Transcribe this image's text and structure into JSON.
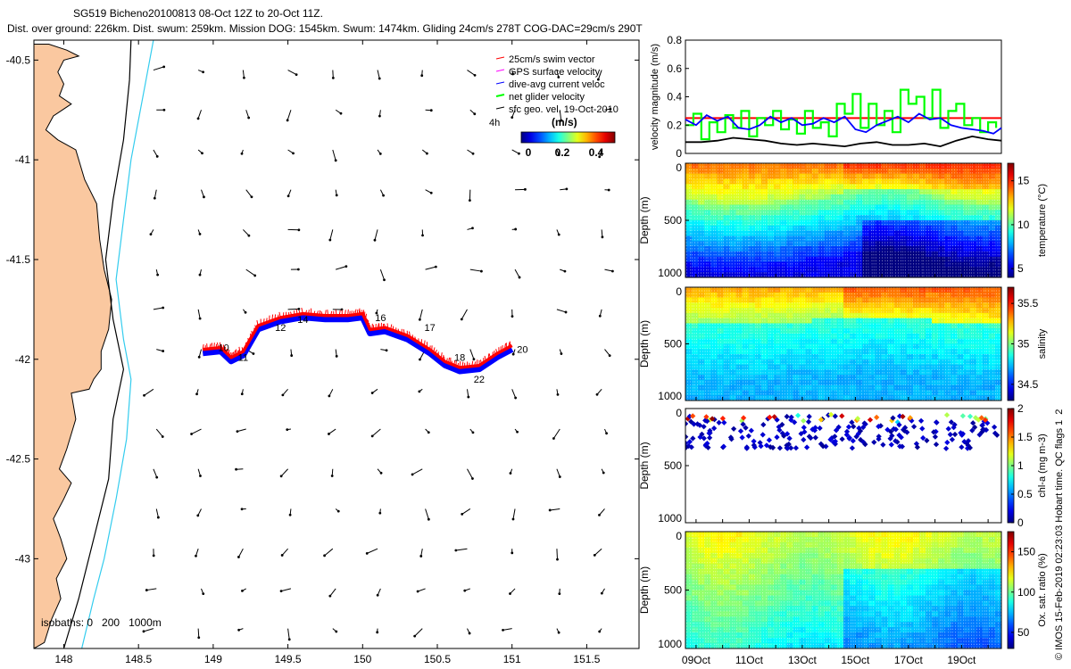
{
  "header": {
    "line1": "SG519 Bicheno20100813 08-Oct 12Z to 20-Oct 11Z.",
    "line2": "Dist. over ground: 226km. Dist. swum: 259km. Mission DOG: 1545km. Swum: 1474km. Gliding 24cm/s 278T COG-DAC=29cm/s 290T"
  },
  "colors": {
    "land": "#fac8a0",
    "isobath_200": "#000000",
    "isobath_1000": "#33ccee",
    "swim_vector": "#ff0000",
    "gps_velocity": "#ff00ff",
    "dive_avg": "#0000ff",
    "net_glider": "#00ff00",
    "sfc_geo": "#000000"
  },
  "chart_data": [
    {
      "id": "map",
      "type": "scatter",
      "title": "",
      "xlim": [
        147.8,
        151.85
      ],
      "ylim": [
        -43.45,
        -40.4
      ],
      "xticks": [
        148,
        148.5,
        149,
        149.5,
        150,
        150.5,
        151,
        151.5
      ],
      "yticks": [
        -40.5,
        -41,
        -41.5,
        -42,
        -42.5,
        -43
      ],
      "xtick_labels": [
        "148",
        "148.5",
        "149",
        "149.5",
        "150",
        "150.5",
        "151",
        "151.5"
      ],
      "ytick_labels": [
        "-40.5",
        "-41",
        "-41.5",
        "-42",
        "-42.5",
        "-43"
      ],
      "legend": [
        "25cm/s swim vector",
        "GPS surface velocity",
        "dive-avg current veloc",
        "net glider velocity",
        "sfc geo. vel. 19-Oct-2010"
      ],
      "legend_note": "4h",
      "colorbar": {
        "label": "(m/s)",
        "ticks": [
          "0",
          "0.2",
          "0.4"
        ],
        "range": [
          -0.05,
          0.5
        ]
      },
      "isobath_label": "isobaths: 0   200   1000m",
      "coast": [
        [
          147.8,
          -40.42
        ],
        [
          147.9,
          -40.42
        ],
        [
          148.02,
          -40.45
        ],
        [
          148.1,
          -40.48
        ],
        [
          148.0,
          -40.5
        ],
        [
          147.96,
          -40.56
        ],
        [
          148.0,
          -40.62
        ],
        [
          147.97,
          -40.68
        ],
        [
          148.05,
          -40.72
        ],
        [
          147.93,
          -40.78
        ],
        [
          147.88,
          -40.85
        ],
        [
          147.96,
          -40.9
        ],
        [
          148.08,
          -40.95
        ],
        [
          148.14,
          -41.1
        ],
        [
          148.22,
          -41.22
        ],
        [
          148.24,
          -41.4
        ],
        [
          148.27,
          -41.55
        ],
        [
          148.32,
          -41.7
        ],
        [
          148.3,
          -41.85
        ],
        [
          148.25,
          -41.96
        ],
        [
          148.25,
          -42.05
        ],
        [
          148.2,
          -42.1
        ],
        [
          148.17,
          -42.15
        ],
        [
          148.05,
          -42.17
        ],
        [
          148.08,
          -42.3
        ],
        [
          148.02,
          -42.45
        ],
        [
          147.97,
          -42.55
        ],
        [
          148.05,
          -42.62
        ],
        [
          148.0,
          -42.7
        ],
        [
          147.93,
          -42.8
        ],
        [
          147.98,
          -42.9
        ],
        [
          148.02,
          -43.0
        ],
        [
          147.95,
          -43.1
        ],
        [
          147.98,
          -43.2
        ],
        [
          147.92,
          -43.3
        ],
        [
          147.87,
          -43.42
        ],
        [
          147.8,
          -43.45
        ]
      ],
      "isobath_200": [
        [
          148.45,
          -40.4
        ],
        [
          148.44,
          -40.6
        ],
        [
          148.4,
          -40.9
        ],
        [
          148.33,
          -41.2
        ],
        [
          148.28,
          -41.5
        ],
        [
          148.33,
          -41.8
        ],
        [
          148.4,
          -42.05
        ],
        [
          148.33,
          -42.3
        ],
        [
          148.3,
          -42.6
        ],
        [
          148.2,
          -42.9
        ],
        [
          148.1,
          -43.2
        ],
        [
          148.0,
          -43.45
        ]
      ],
      "isobath_1000": [
        [
          148.6,
          -40.4
        ],
        [
          148.55,
          -40.6
        ],
        [
          148.5,
          -40.8
        ],
        [
          148.45,
          -41.0
        ],
        [
          148.4,
          -41.3
        ],
        [
          148.35,
          -41.6
        ],
        [
          148.4,
          -41.9
        ],
        [
          148.45,
          -42.1
        ],
        [
          148.42,
          -42.4
        ],
        [
          148.35,
          -42.7
        ],
        [
          148.27,
          -43.0
        ],
        [
          148.2,
          -43.2
        ],
        [
          148.12,
          -43.45
        ]
      ],
      "track": [
        [
          148.93,
          -41.96
        ],
        [
          149.05,
          -41.95
        ],
        [
          149.12,
          -42.0
        ],
        [
          149.2,
          -41.97
        ],
        [
          149.3,
          -41.84
        ],
        [
          149.45,
          -41.8
        ],
        [
          149.6,
          -41.78
        ],
        [
          149.75,
          -41.79
        ],
        [
          149.9,
          -41.79
        ],
        [
          150.0,
          -41.78
        ],
        [
          150.05,
          -41.86
        ],
        [
          150.15,
          -41.85
        ],
        [
          150.3,
          -41.89
        ],
        [
          150.45,
          -41.96
        ],
        [
          150.55,
          -42.02
        ],
        [
          150.65,
          -42.05
        ],
        [
          150.78,
          -42.04
        ],
        [
          150.9,
          -41.98
        ],
        [
          151.0,
          -41.94
        ]
      ],
      "track_labels": [
        {
          "text": "10",
          "lon": 149.07,
          "lat": -41.94
        },
        {
          "text": "11",
          "lon": 149.2,
          "lat": -41.99
        },
        {
          "text": "12",
          "lon": 149.45,
          "lat": -41.84
        },
        {
          "text": "14",
          "lon": 149.6,
          "lat": -41.8
        },
        {
          "text": "16",
          "lon": 150.12,
          "lat": -41.79
        },
        {
          "text": "17",
          "lon": 150.45,
          "lat": -41.84
        },
        {
          "text": "18",
          "lon": 150.65,
          "lat": -41.99
        },
        {
          "text": "20",
          "lon": 151.07,
          "lat": -41.95
        },
        {
          "text": "22",
          "lon": 150.78,
          "lat": -42.1
        }
      ],
      "arrow_grid": {
        "lon_start": 148.6,
        "lon_step": 0.3,
        "lat_start": -40.55,
        "lat_step": -0.2
      }
    },
    {
      "id": "velocity",
      "type": "line",
      "ylabel": "velocity magnitude (m/s)",
      "ylim": [
        0,
        0.8
      ],
      "xlim": [
        8.6,
        20.5
      ],
      "yticks": [
        0,
        0.2,
        0.4,
        0.6,
        0.8
      ],
      "ytick_labels": [
        "0",
        "0.2",
        "0.4",
        "0.6",
        "0.8"
      ],
      "swim_reference": 0.25,
      "series": [
        {
          "name": "net glider velocity",
          "color": "#00ff00",
          "x": [
            8.6,
            8.9,
            9.2,
            9.5,
            9.8,
            10.1,
            10.4,
            10.7,
            11.0,
            11.3,
            11.6,
            11.9,
            12.2,
            12.5,
            12.8,
            13.1,
            13.4,
            13.7,
            14.0,
            14.3,
            14.6,
            14.9,
            15.2,
            15.5,
            15.8,
            16.1,
            16.4,
            16.7,
            17.0,
            17.3,
            17.6,
            17.9,
            18.2,
            18.5,
            18.8,
            19.1,
            19.4,
            19.7,
            20.0,
            20.3
          ],
          "values": [
            0.2,
            0.28,
            0.1,
            0.22,
            0.15,
            0.27,
            0.18,
            0.3,
            0.12,
            0.25,
            0.2,
            0.3,
            0.17,
            0.24,
            0.14,
            0.3,
            0.18,
            0.22,
            0.12,
            0.35,
            0.28,
            0.42,
            0.18,
            0.35,
            0.2,
            0.3,
            0.15,
            0.45,
            0.35,
            0.4,
            0.25,
            0.45,
            0.18,
            0.3,
            0.35,
            0.2,
            0.25,
            0.15,
            0.22,
            0.18
          ]
        },
        {
          "name": "dive-avg current veloc",
          "color": "#0000ff",
          "x": [
            8.6,
            9.0,
            9.4,
            9.8,
            10.2,
            10.6,
            11.0,
            11.4,
            11.8,
            12.2,
            12.6,
            13.0,
            13.4,
            13.8,
            14.2,
            14.6,
            15.0,
            15.4,
            15.8,
            16.2,
            16.6,
            17.0,
            17.4,
            17.8,
            18.2,
            18.6,
            19.0,
            19.4,
            19.8,
            20.2,
            20.5
          ],
          "values": [
            0.24,
            0.2,
            0.27,
            0.23,
            0.26,
            0.18,
            0.17,
            0.2,
            0.26,
            0.22,
            0.25,
            0.2,
            0.21,
            0.25,
            0.22,
            0.26,
            0.17,
            0.15,
            0.2,
            0.23,
            0.26,
            0.22,
            0.28,
            0.24,
            0.25,
            0.2,
            0.18,
            0.17,
            0.16,
            0.14,
            0.18
          ]
        },
        {
          "name": "sfc geo. vel.",
          "color": "#000000",
          "x": [
            8.6,
            9.2,
            9.8,
            10.4,
            11.0,
            11.6,
            12.2,
            12.8,
            13.4,
            14.0,
            14.6,
            15.2,
            15.8,
            16.4,
            17.0,
            17.6,
            18.2,
            18.8,
            19.4,
            20.0,
            20.5
          ],
          "values": [
            0.08,
            0.08,
            0.09,
            0.11,
            0.1,
            0.09,
            0.07,
            0.06,
            0.07,
            0.06,
            0.05,
            0.07,
            0.08,
            0.06,
            0.06,
            0.07,
            0.05,
            0.09,
            0.12,
            0.1,
            0.09
          ]
        }
      ]
    },
    {
      "id": "temperature",
      "type": "heatmap",
      "ylabel": "Depth (m)",
      "colorbar_label": "temperature (°C)",
      "clim": [
        4,
        17
      ],
      "colorbar_ticks": [
        "5",
        "10",
        "15"
      ],
      "ylim": [
        1000,
        0
      ],
      "yticks": [
        "0",
        "500",
        "1000"
      ]
    },
    {
      "id": "salinity",
      "type": "heatmap",
      "ylabel": "Depth (m)",
      "colorbar_label": "salinity",
      "clim": [
        34.3,
        35.7
      ],
      "colorbar_ticks": [
        "34.5",
        "35",
        "35.5"
      ],
      "ylim": [
        1000,
        0
      ],
      "yticks": [
        "0",
        "500",
        "1000"
      ]
    },
    {
      "id": "chla",
      "type": "scatter",
      "ylabel": "Depth (m)",
      "colorbar_label": "chl-a (mg m-3)",
      "clim": [
        0,
        2
      ],
      "colorbar_ticks": [
        "0",
        "0.5",
        "1",
        "1.5",
        "2"
      ],
      "ylim": [
        1000,
        0
      ],
      "yticks": [
        "0",
        "500",
        "1000"
      ]
    },
    {
      "id": "oxygen",
      "type": "heatmap",
      "ylabel": "Depth (m)",
      "colorbar_label": "Ox. sat. ratio (%)",
      "clim": [
        30,
        175
      ],
      "colorbar_ticks": [
        "50",
        "100",
        "150"
      ],
      "ylim": [
        1000,
        0
      ],
      "yticks": [
        "0",
        "500",
        "1000"
      ],
      "xtick_labels": [
        "09Oct",
        "11Oct",
        "13Oct",
        "15Oct",
        "17Oct",
        "19Oct"
      ],
      "xticks": [
        9,
        11,
        13,
        15,
        17,
        19
      ]
    }
  ],
  "side_note": "© IMOS 15-Feb-2019 02:23:03 Hobart time. QC flags 1  2"
}
